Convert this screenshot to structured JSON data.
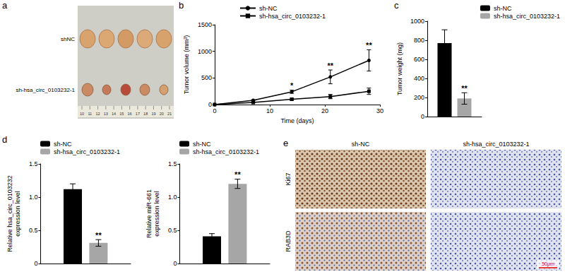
{
  "chart_data": [
    {
      "panel": "b",
      "type": "line",
      "x": [
        0,
        7,
        14,
        21,
        28
      ],
      "xlim": [
        0,
        30
      ],
      "xticks": [
        0,
        10,
        20,
        30
      ],
      "ylim": [
        0,
        1500
      ],
      "yticks": [
        0,
        500,
        1000,
        1500
      ],
      "x_label": "Time (days)",
      "y_label": "Tumor volume (mm³)",
      "grid": false,
      "legend": "top",
      "series": [
        {
          "name": "sh-NC",
          "color": "#000000",
          "marker": "circle",
          "values": [
            0,
            80,
            240,
            520,
            830
          ],
          "errors": [
            0,
            10,
            30,
            130,
            200
          ]
        },
        {
          "name": "sh-hsa_circ_0103232-1",
          "color": "#000000",
          "marker": "square",
          "values": [
            0,
            40,
            100,
            150,
            250
          ],
          "errors": [
            0,
            8,
            20,
            40,
            60
          ]
        }
      ],
      "annotations": [
        {
          "x": 14,
          "text": "*"
        },
        {
          "x": 21,
          "text": "**"
        },
        {
          "x": 28,
          "text": "**"
        }
      ]
    },
    {
      "panel": "c",
      "type": "bar",
      "categories": [
        null
      ],
      "tick_labels": "y",
      "grid": false,
      "legend": "top-right",
      "y_label": "Tumor weight (mg)",
      "ylim": [
        0,
        1000
      ],
      "yticks": [
        0,
        200,
        400,
        600,
        800,
        1000
      ],
      "series": [
        {
          "name": "sh-NC",
          "color": "#000000",
          "values": [
            770
          ],
          "errors": [
            140
          ]
        },
        {
          "name": "sh-hsa_circ_0103232-1",
          "color": "#a6a6a6",
          "values": [
            190
          ],
          "errors": [
            60
          ]
        }
      ],
      "annotations": [
        {
          "series": "sh-hsa_circ_0103232-1",
          "text": "**"
        }
      ]
    },
    {
      "panel": "d",
      "type": "bar",
      "categories": [
        null
      ],
      "tick_labels": "y",
      "grid": false,
      "legend": "top-left",
      "y_label": "Relative hsa_circ_0103232\nexpression level",
      "ylim": [
        0,
        1.5
      ],
      "yticks": [
        0,
        0.5,
        {
          "value": 1,
          "label": "1.0"
        },
        1.5
      ],
      "series": [
        {
          "name": "sh-NC",
          "color": "#000000",
          "values": [
            1.12
          ],
          "errors": [
            0.08
          ]
        },
        {
          "name": "sh-hsa_circ_0103232-1",
          "color": "#a6a6a6",
          "values": [
            0.31
          ],
          "errors": [
            0.05
          ]
        }
      ],
      "annotations": [
        {
          "series": "sh-hsa_circ_0103232-1",
          "text": "**"
        }
      ]
    },
    {
      "type": "bar",
      "categories": [
        null
      ],
      "tick_labels": "y",
      "grid": false,
      "legend": "top-left",
      "y_label": "Relative miR-661\nexpression level",
      "ylim": [
        0,
        1.5
      ],
      "yticks": [
        0,
        0.5,
        {
          "value": 1,
          "label": "1.0"
        },
        1.5
      ],
      "series": [
        {
          "name": "sh-NC",
          "color": "#000000",
          "values": [
            0.41
          ],
          "errors": [
            0.04
          ]
        },
        {
          "name": "sh-hsa_circ_0103232-1",
          "color": "#a6a6a6",
          "values": [
            1.2
          ],
          "errors": [
            0.07
          ]
        }
      ],
      "annotations": [
        {
          "series": "sh-hsa_circ_0103232-1",
          "text": "**"
        }
      ]
    }
  ],
  "photos": [
    {
      "panel": "a",
      "row_labels": [
        "shNC",
        "sh-hsa_circ_0103232-1"
      ],
      "ruler_labels": [
        "10",
        "11",
        "12",
        "13",
        "14",
        "15",
        "16",
        "17",
        "18",
        "19",
        "20",
        "21"
      ]
    },
    {
      "panel": "e",
      "column_labels": [
        "sh-NC",
        "sh-hsa_circ_0103232-1"
      ],
      "row_labels": [
        "Ki67",
        "RAB3D"
      ],
      "scale_bar": "50μm"
    }
  ]
}
